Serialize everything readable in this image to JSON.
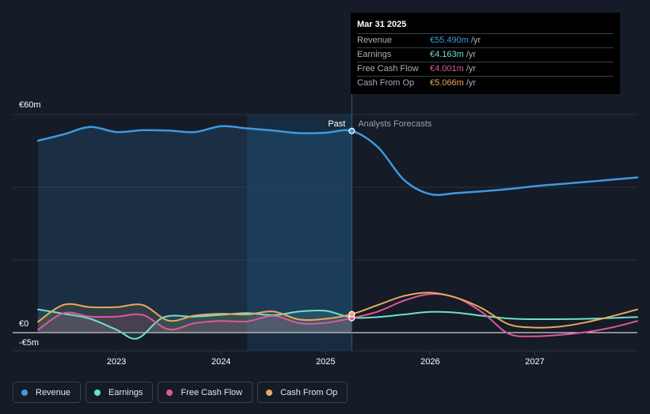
{
  "tooltip": {
    "date": "Mar 31 2025",
    "rows": [
      {
        "label": "Revenue",
        "value": "€55.490m",
        "unit": "/yr",
        "color": "#3b9be0"
      },
      {
        "label": "Earnings",
        "value": "€4.163m",
        "unit": "/yr",
        "color": "#6ee0cc"
      },
      {
        "label": "Free Cash Flow",
        "value": "€4.001m",
        "unit": "/yr",
        "color": "#e0579b"
      },
      {
        "label": "Cash From Op",
        "value": "€5.066m",
        "unit": "/yr",
        "color": "#e8a85a"
      }
    ]
  },
  "legend": [
    {
      "label": "Revenue",
      "color": "#3b9be0"
    },
    {
      "label": "Earnings",
      "color": "#6ee0cc"
    },
    {
      "label": "Free Cash Flow",
      "color": "#e0579b"
    },
    {
      "label": "Cash From Op",
      "color": "#e8a85a"
    }
  ],
  "chart_data": {
    "type": "line",
    "y_labels": {
      "top": "€60m",
      "zero": "€0",
      "bottom": "-€5m"
    },
    "ylim": [
      -5,
      60
    ],
    "xlim": [
      2022.25,
      2027.98
    ],
    "x_ticks": [
      {
        "x": 2023,
        "label": "2023"
      },
      {
        "x": 2024,
        "label": "2024"
      },
      {
        "x": 2025,
        "label": "2025"
      },
      {
        "x": 2026,
        "label": "2026"
      },
      {
        "x": 2027,
        "label": "2027"
      }
    ],
    "past_label": "Past",
    "forecast_label": "Analysts Forecasts",
    "past_end_x": 2025.25,
    "highlight_start_x": 2024.25,
    "series": [
      {
        "name": "Revenue",
        "color": "#3b9be0",
        "points": [
          [
            2022.25,
            52.8
          ],
          [
            2022.5,
            54.6
          ],
          [
            2022.75,
            56.6
          ],
          [
            2023,
            55.2
          ],
          [
            2023.25,
            55.7
          ],
          [
            2023.5,
            55.6
          ],
          [
            2023.75,
            55.2
          ],
          [
            2024,
            56.8
          ],
          [
            2024.25,
            56.2
          ],
          [
            2024.5,
            55.6
          ],
          [
            2024.75,
            54.9
          ],
          [
            2025,
            55.0
          ],
          [
            2025.25,
            55.49
          ],
          [
            2025.5,
            51
          ],
          [
            2025.75,
            42
          ],
          [
            2026,
            38.1
          ],
          [
            2026.25,
            38.4
          ],
          [
            2026.5,
            38.9
          ],
          [
            2026.75,
            39.5
          ],
          [
            2027,
            40.3
          ],
          [
            2027.25,
            40.9
          ],
          [
            2027.5,
            41.5
          ],
          [
            2027.75,
            42.1
          ],
          [
            2027.98,
            42.7
          ]
        ]
      },
      {
        "name": "Earnings",
        "color": "#6ee0cc",
        "points": [
          [
            2022.25,
            6.4
          ],
          [
            2022.5,
            5.2
          ],
          [
            2022.75,
            3.8
          ],
          [
            2023,
            0.8
          ],
          [
            2023.2,
            -1.6
          ],
          [
            2023.45,
            4.2
          ],
          [
            2023.75,
            4.4
          ],
          [
            2024,
            4.9
          ],
          [
            2024.25,
            5.4
          ],
          [
            2024.5,
            4.8
          ],
          [
            2024.75,
            5.8
          ],
          [
            2025,
            6.0
          ],
          [
            2025.25,
            4.163
          ],
          [
            2025.5,
            4.3
          ],
          [
            2025.75,
            5.0
          ],
          [
            2026,
            5.7
          ],
          [
            2026.25,
            5.5
          ],
          [
            2026.5,
            4.6
          ],
          [
            2026.75,
            3.9
          ],
          [
            2027,
            3.7
          ],
          [
            2027.5,
            3.8
          ],
          [
            2027.98,
            4.3
          ]
        ]
      },
      {
        "name": "Free Cash Flow",
        "color": "#e0579b",
        "points": [
          [
            2022.25,
            0.8
          ],
          [
            2022.5,
            5.4
          ],
          [
            2022.75,
            4.4
          ],
          [
            2023,
            4.4
          ],
          [
            2023.25,
            4.9
          ],
          [
            2023.5,
            0.9
          ],
          [
            2023.75,
            2.6
          ],
          [
            2024,
            3.2
          ],
          [
            2024.25,
            3.1
          ],
          [
            2024.5,
            4.6
          ],
          [
            2024.75,
            2.6
          ],
          [
            2025,
            2.7
          ],
          [
            2025.25,
            4.001
          ],
          [
            2025.5,
            5.8
          ],
          [
            2025.75,
            8.8
          ],
          [
            2026,
            10.6
          ],
          [
            2026.25,
            9.6
          ],
          [
            2026.5,
            5.5
          ],
          [
            2026.75,
            -0.3
          ],
          [
            2027,
            -1.0
          ],
          [
            2027.25,
            -0.6
          ],
          [
            2027.5,
            0.2
          ],
          [
            2027.75,
            1.5
          ],
          [
            2027.98,
            3.2
          ]
        ]
      },
      {
        "name": "Cash From Op",
        "color": "#e8a85a",
        "points": [
          [
            2022.25,
            3.0
          ],
          [
            2022.5,
            7.7
          ],
          [
            2022.75,
            7.0
          ],
          [
            2023,
            7.0
          ],
          [
            2023.25,
            7.6
          ],
          [
            2023.5,
            3.3
          ],
          [
            2023.75,
            4.7
          ],
          [
            2024,
            5.2
          ],
          [
            2024.25,
            5.0
          ],
          [
            2024.5,
            5.8
          ],
          [
            2024.75,
            3.6
          ],
          [
            2025,
            3.8
          ],
          [
            2025.25,
            5.066
          ],
          [
            2025.5,
            7.6
          ],
          [
            2025.75,
            10.1
          ],
          [
            2026,
            11.0
          ],
          [
            2026.25,
            9.6
          ],
          [
            2026.5,
            6.6
          ],
          [
            2026.75,
            2.3
          ],
          [
            2027,
            1.4
          ],
          [
            2027.25,
            1.7
          ],
          [
            2027.5,
            2.9
          ],
          [
            2027.75,
            4.6
          ],
          [
            2027.98,
            6.4
          ]
        ]
      }
    ]
  }
}
